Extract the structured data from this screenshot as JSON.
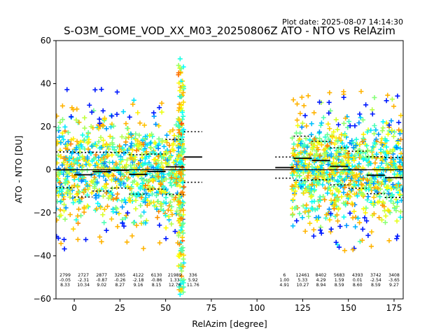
{
  "plot_date": "Plot date: 2025-08-07 14:14:30",
  "chart_data": {
    "type": "scatter",
    "title": "S-O3M_GOME_VOD_XX_M03_20250806Z ATO - NTO vs RelAzim",
    "xlabel": "RelAzim [degree]",
    "ylabel": "ATO - NTO [DU]",
    "xlim": [
      -10,
      180
    ],
    "ylim": [
      -60,
      60
    ],
    "xticks": [
      0,
      25,
      50,
      75,
      100,
      125,
      150,
      175
    ],
    "yticks": [
      -60,
      -40,
      -20,
      0,
      20,
      40,
      60
    ],
    "xtick_labels": [
      "0",
      "25",
      "50",
      "75",
      "100",
      "125",
      "150",
      "175"
    ],
    "ytick_labels": [
      "−60",
      "−40",
      "−20",
      "0",
      "20",
      "40",
      "60"
    ],
    "grid": false,
    "legend": "none",
    "zero_line": 0,
    "marker": "+",
    "colormap": "jet",
    "point_groups": [
      {
        "x_range": [
          -10,
          60
        ],
        "y_center": 0,
        "y_spread": 22
      },
      {
        "x_range": [
          119,
          180
        ],
        "y_center": 0,
        "y_spread": 22
      }
    ],
    "bins": [
      {
        "x_center": -5,
        "count": "2799",
        "mean": "-0.05",
        "std": "8.33",
        "mean_value": -0.05,
        "std_value": 8.33
      },
      {
        "x_center": 5,
        "count": "2727",
        "mean": "-2.31",
        "std": "10.34",
        "mean_value": -2.31,
        "std_value": 10.34
      },
      {
        "x_center": 15,
        "count": "2877",
        "mean": "-0.87",
        "std": "9.02",
        "mean_value": -0.87,
        "std_value": 9.02
      },
      {
        "x_center": 25,
        "count": "3265",
        "mean": "-0.26",
        "std": "8.27",
        "mean_value": -0.26,
        "std_value": 8.27
      },
      {
        "x_center": 35,
        "count": "4122",
        "mean": "-2.18",
        "std": "9.16",
        "mean_value": -2.18,
        "std_value": 9.16
      },
      {
        "x_center": 45,
        "count": "6130",
        "mean": "-0.86",
        "std": "8.15",
        "mean_value": -0.86,
        "std_value": 8.15
      },
      {
        "x_center": 55,
        "count": "21989",
        "mean": "1.33",
        "std": "12.76",
        "mean_value": 1.33,
        "std_value": 12.76
      },
      {
        "x_center": 65,
        "count": "336",
        "mean": "5.92",
        "std": "11.76",
        "mean_value": 5.92,
        "std_value": 11.76
      },
      {
        "x_center": 115,
        "count": "6",
        "mean": "1.00",
        "std": "4.91",
        "mean_value": 1.0,
        "std_value": 4.91
      },
      {
        "x_center": 125,
        "count": "12461",
        "mean": "5.33",
        "std": "10.27",
        "mean_value": 5.33,
        "std_value": 10.27
      },
      {
        "x_center": 135,
        "count": "8402",
        "mean": "4.29",
        "std": "8.94",
        "mean_value": 4.29,
        "std_value": 8.94
      },
      {
        "x_center": 145,
        "count": "5683",
        "mean": "1.59",
        "std": "8.59",
        "mean_value": 1.59,
        "std_value": 8.59
      },
      {
        "x_center": 155,
        "count": "4393",
        "mean": "0.01",
        "std": "8.60",
        "mean_value": 0.01,
        "std_value": 8.6
      },
      {
        "x_center": 165,
        "count": "3742",
        "mean": "-2.54",
        "std": "8.59",
        "mean_value": -2.54,
        "std_value": 8.59
      },
      {
        "x_center": 175,
        "count": "3408",
        "mean": "-3.65",
        "std": "9.27",
        "mean_value": -3.65,
        "std_value": 9.27
      }
    ]
  }
}
